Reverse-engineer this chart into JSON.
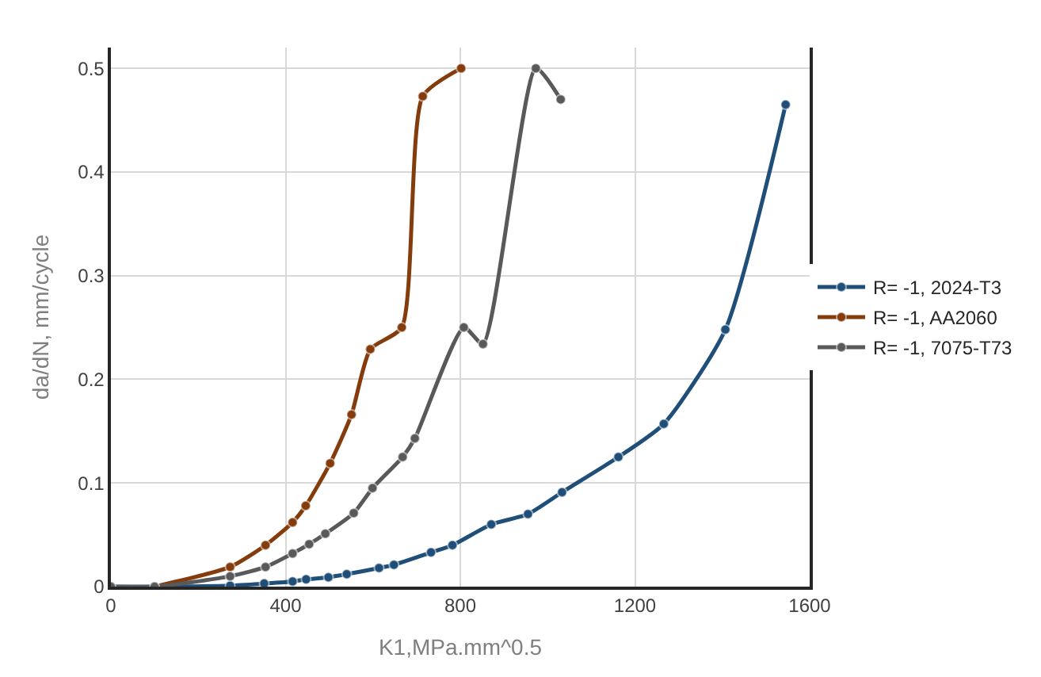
{
  "chart_data": {
    "type": "line",
    "xlabel": "K1,MPa.mm^0.5",
    "ylabel": "da/dN, mm/cycle",
    "xlim": [
      0,
      1600
    ],
    "xticks": [
      0,
      400,
      800,
      1200,
      1600
    ],
    "ylim": [
      0,
      0.52
    ],
    "yticks": [
      0,
      0.1,
      0.2,
      0.3,
      0.4,
      0.5
    ],
    "grid": true,
    "legend": "right",
    "marker": "circle",
    "line_style": "solid",
    "series": [
      {
        "name": "R= -1, 2024-T3",
        "color": "#1f4e79",
        "x": [
          0,
          100,
          273,
          351,
          416,
          447,
          498,
          540,
          614,
          648,
          733,
          782,
          871,
          955,
          1033,
          1162,
          1266,
          1407,
          1545
        ],
        "values": [
          0,
          0,
          0.001,
          0.003,
          0.005,
          0.007,
          0.009,
          0.012,
          0.018,
          0.021,
          0.033,
          0.04,
          0.06,
          0.07,
          0.091,
          0.125,
          0.157,
          0.248,
          0.465
        ]
      },
      {
        "name": "R= -1, AA2060",
        "color": "#843c0c",
        "x": [
          100,
          273,
          354,
          416,
          446,
          502,
          551,
          594,
          666,
          714,
          802
        ],
        "values": [
          0,
          0.019,
          0.04,
          0.062,
          0.078,
          0.119,
          0.166,
          0.229,
          0.25,
          0.473,
          0.5
        ]
      },
      {
        "name": "R= -1, 7075-T73",
        "color": "#595959",
        "x": [
          0,
          100,
          273,
          354,
          416,
          454,
          491,
          556,
          599,
          668,
          696,
          808,
          852,
          973,
          1030
        ],
        "values": [
          0,
          0,
          0.01,
          0.019,
          0.032,
          0.041,
          0.051,
          0.071,
          0.095,
          0.125,
          0.143,
          0.25,
          0.234,
          0.5,
          0.47
        ]
      }
    ]
  }
}
